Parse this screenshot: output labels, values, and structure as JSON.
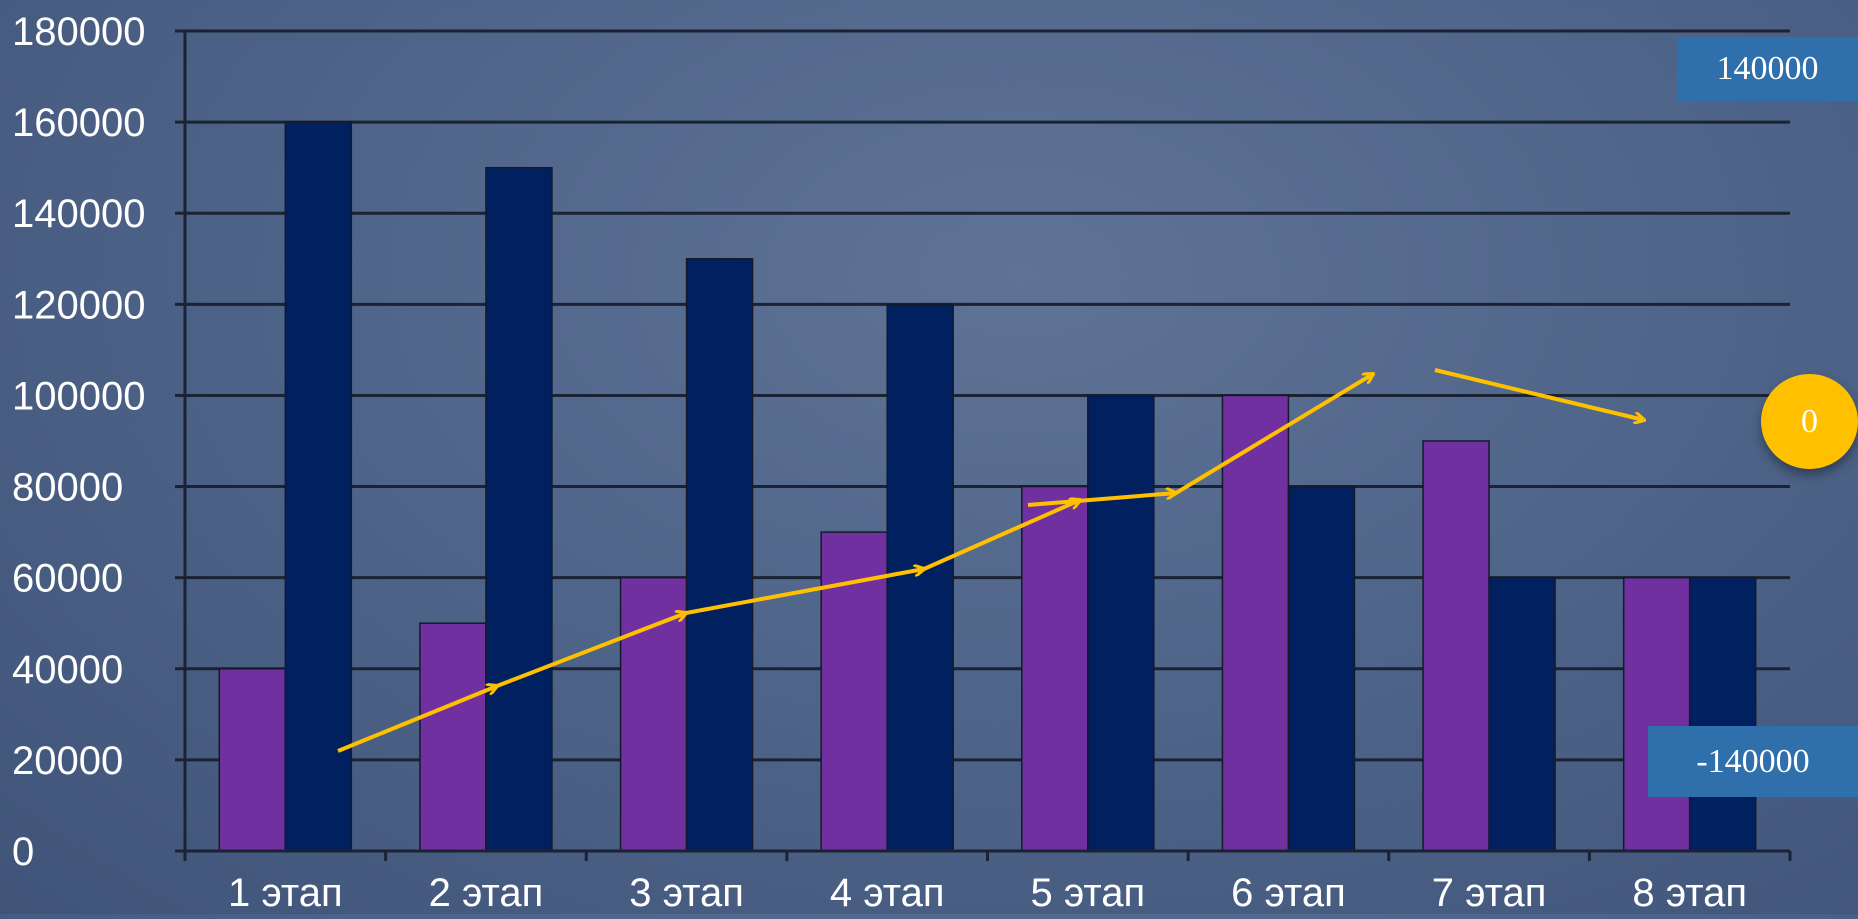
{
  "chart_data": {
    "type": "bar",
    "categories": [
      "1 этап",
      "2 этап",
      "3 этап",
      "4 этап",
      "5 этап",
      "6 этап",
      "7 этап",
      "8 этап"
    ],
    "series": [
      {
        "values": [
          40000,
          50000,
          60000,
          70000,
          80000,
          100000,
          90000,
          60000
        ],
        "color": "#7030a0"
      },
      {
        "values": [
          160000,
          150000,
          130000,
          120000,
          100000,
          80000,
          60000,
          60000
        ],
        "color": "#002060"
      }
    ],
    "ylim": [
      0,
      180000
    ],
    "yticks": [
      0,
      20000,
      40000,
      60000,
      80000,
      100000,
      120000,
      140000,
      160000,
      180000
    ],
    "grid": true,
    "title": "",
    "xlabel": "",
    "ylabel": ""
  },
  "annotations": {
    "top_box": "140000",
    "circle": "0",
    "bottom_box": "-140000",
    "arrow_color": "#ffc000"
  }
}
